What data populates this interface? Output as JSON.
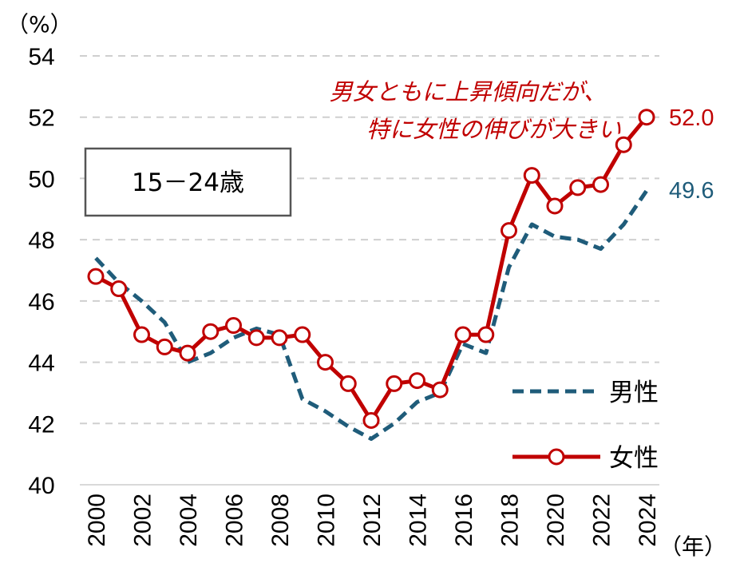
{
  "chart_data": {
    "type": "line",
    "y_unit_label": "（%）",
    "x_unit_label": "（年）",
    "ylim": [
      40,
      54
    ],
    "yticks": [
      "40",
      "42",
      "44",
      "46",
      "48",
      "50",
      "52",
      "54"
    ],
    "x": [
      2000,
      2001,
      2002,
      2003,
      2004,
      2005,
      2006,
      2007,
      2008,
      2009,
      2010,
      2011,
      2012,
      2013,
      2014,
      2015,
      2016,
      2017,
      2018,
      2019,
      2020,
      2021,
      2022,
      2023,
      2024
    ],
    "xtick_labels": [
      "2000",
      "2002",
      "2004",
      "2006",
      "2008",
      "2010",
      "2012",
      "2014",
      "2016",
      "2018",
      "2020",
      "2022",
      "2024"
    ],
    "grid": "horizontal dashed",
    "legend_position": "bottom-right",
    "box_label": "15－24歳",
    "annotation": [
      "男女ともに上昇傾向だが、",
      "特に女性の伸びが大きい"
    ],
    "series": [
      {
        "name": "男性",
        "style": "dashed",
        "color": "#1f5c7a",
        "end_label": "49.6",
        "values": [
          47.4,
          46.6,
          46.0,
          45.3,
          44.0,
          44.3,
          44.8,
          45.1,
          44.9,
          42.8,
          42.4,
          41.9,
          41.5,
          42.0,
          42.7,
          43.0,
          44.6,
          44.3,
          47.1,
          48.5,
          48.1,
          48.0,
          47.7,
          48.5,
          49.6
        ]
      },
      {
        "name": "女性",
        "style": "solid-markers",
        "color": "#c00000",
        "end_label": "52.0",
        "values": [
          46.8,
          46.4,
          44.9,
          44.5,
          44.3,
          45.0,
          45.2,
          44.8,
          44.8,
          44.9,
          44.0,
          43.3,
          42.1,
          43.3,
          43.4,
          43.1,
          44.9,
          44.9,
          48.3,
          50.1,
          49.1,
          49.7,
          49.8,
          51.1,
          52.0
        ]
      }
    ]
  }
}
